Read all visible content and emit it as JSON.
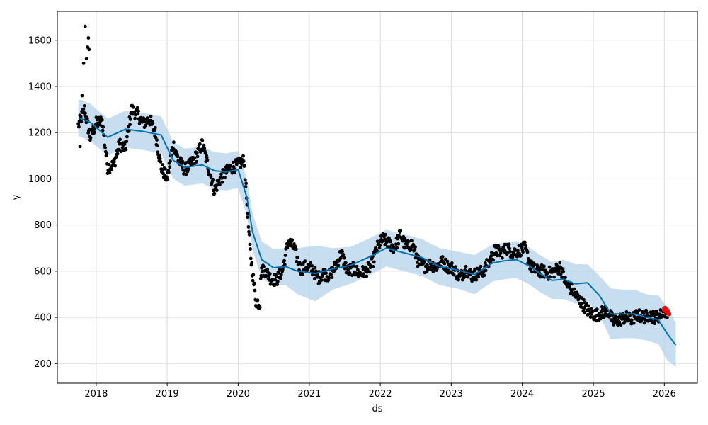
{
  "chart_data": {
    "type": "scatter",
    "title": "",
    "xlabel": "ds",
    "ylabel": "y",
    "xlim": [
      "2017-06-15",
      "2026-06-20"
    ],
    "ylim": [
      115,
      1725
    ],
    "x_ticks": [
      "2018-01-01",
      "2019-01-01",
      "2020-01-01",
      "2021-01-01",
      "2022-01-01",
      "2023-01-01",
      "2024-01-01",
      "2025-01-01",
      "2026-01-01"
    ],
    "x_tick_labels": [
      "2018",
      "2019",
      "2020",
      "2021",
      "2022",
      "2023",
      "2024",
      "2025",
      "2026"
    ],
    "y_ticks": [
      200,
      400,
      600,
      800,
      1000,
      1200,
      1400,
      1600
    ],
    "grid": true,
    "colors": {
      "observed": "#000000",
      "recent": "#ff0000",
      "forecast": "#0072b2",
      "interval": "#b3d3ea"
    },
    "forecast": {
      "x": [
        "2017-10-01",
        "2017-12-01",
        "2018-03-01",
        "2018-06-01",
        "2018-09-01",
        "2018-12-01",
        "2019-02-01",
        "2019-04-01",
        "2019-07-01",
        "2019-09-01",
        "2019-11-01",
        "2020-01-01",
        "2020-02-15",
        "2020-03-15",
        "2020-05-01",
        "2020-07-01",
        "2020-09-01",
        "2020-11-01",
        "2021-02-01",
        "2021-05-01",
        "2021-08-01",
        "2021-11-01",
        "2022-02-01",
        "2022-05-01",
        "2022-08-01",
        "2022-11-01",
        "2023-02-01",
        "2023-05-01",
        "2023-08-01",
        "2023-10-01",
        "2023-12-01",
        "2024-02-01",
        "2024-04-01",
        "2024-06-01",
        "2024-08-01",
        "2024-10-01",
        "2024-12-01",
        "2025-02-01",
        "2025-04-01",
        "2025-06-01",
        "2025-08-01",
        "2025-10-01",
        "2025-12-01",
        "2026-01-15",
        "2026-03-01"
      ],
      "yhat": [
        1265,
        1245,
        1180,
        1215,
        1205,
        1190,
        1080,
        1050,
        1060,
        1035,
        1030,
        1040,
        920,
        770,
        650,
        615,
        620,
        600,
        590,
        610,
        625,
        660,
        700,
        680,
        660,
        620,
        605,
        585,
        635,
        645,
        650,
        625,
        590,
        560,
        565,
        545,
        550,
        495,
        415,
        415,
        415,
        400,
        390,
        330,
        280
      ],
      "lower": [
        1185,
        1165,
        1100,
        1135,
        1125,
        1110,
        1000,
        970,
        980,
        955,
        950,
        960,
        840,
        690,
        570,
        535,
        540,
        500,
        470,
        520,
        545,
        580,
        620,
        600,
        580,
        540,
        525,
        500,
        555,
        565,
        570,
        545,
        510,
        480,
        480,
        460,
        470,
        410,
        305,
        310,
        310,
        300,
        285,
        215,
        185
      ],
      "upper": [
        1345,
        1325,
        1260,
        1295,
        1285,
        1270,
        1160,
        1130,
        1140,
        1115,
        1110,
        1120,
        1000,
        850,
        730,
        695,
        700,
        700,
        710,
        700,
        705,
        740,
        780,
        760,
        740,
        700,
        685,
        670,
        715,
        725,
        730,
        705,
        670,
        640,
        650,
        630,
        630,
        580,
        525,
        520,
        520,
        500,
        495,
        445,
        375
      ]
    },
    "observed_segments": [
      {
        "x": [
          "2017-10-01",
          "2017-11-01",
          "2017-12-01",
          "2018-01-01",
          "2018-02-01",
          "2018-03-01",
          "2018-04-01",
          "2018-05-01",
          "2018-06-01",
          "2018-07-01",
          "2018-08-01",
          "2018-09-01",
          "2018-10-01",
          "2018-11-01",
          "2018-12-01",
          "2019-01-01",
          "2019-02-01",
          "2019-03-01",
          "2019-04-01",
          "2019-05-01",
          "2019-06-01",
          "2019-07-01",
          "2019-08-01",
          "2019-09-01",
          "2019-10-01",
          "2019-11-01",
          "2019-12-01",
          "2020-01-01",
          "2020-02-01",
          "2020-03-01",
          "2020-04-01",
          "2020-04-25"
        ],
        "y": [
          1230,
          1300,
          1180,
          1240,
          1250,
          1050,
          1060,
          1150,
          1130,
          1300,
          1280,
          1240,
          1260,
          1200,
          1050,
          1000,
          1150,
          1080,
          1040,
          1060,
          1100,
          1150,
          1050,
          950,
          1000,
          1030,
          1050,
          1060,
          1080,
          700,
          470,
          460
        ]
      },
      {
        "x": [
          "2020-04-26",
          "2020-05-15",
          "2020-06-15",
          "2020-07-15",
          "2020-08-15",
          "2020-09-15",
          "2020-10-15",
          "2020-11-15",
          "2020-12-15",
          "2021-01-15",
          "2021-02-15",
          "2021-03-15",
          "2021-04-15",
          "2021-05-15",
          "2021-06-15",
          "2021-07-15",
          "2021-08-15",
          "2021-09-15",
          "2021-10-15",
          "2021-11-15",
          "2021-12-15",
          "2022-01-15",
          "2022-02-15",
          "2022-03-15",
          "2022-04-15",
          "2022-05-15",
          "2022-06-15",
          "2022-07-15",
          "2022-08-15",
          "2022-09-15",
          "2022-10-15",
          "2022-11-15",
          "2022-12-15",
          "2023-01-15",
          "2023-02-15",
          "2023-03-15",
          "2023-04-15",
          "2023-05-15",
          "2023-06-15",
          "2023-07-15",
          "2023-08-15",
          "2023-09-15",
          "2023-10-15",
          "2023-11-15",
          "2023-12-15",
          "2024-01-15",
          "2024-02-15",
          "2024-03-15",
          "2024-04-15",
          "2024-05-15",
          "2024-06-15",
          "2024-07-15",
          "2024-08-15",
          "2024-09-15",
          "2024-10-15",
          "2024-11-15",
          "2024-12-15",
          "2025-01-15",
          "2025-02-15",
          "2025-03-15",
          "2025-04-15",
          "2025-05-15",
          "2025-06-15",
          "2025-07-15",
          "2025-08-15",
          "2025-09-15",
          "2025-10-15",
          "2025-11-15",
          "2025-12-15"
        ],
        "y": [
          590,
          610,
          570,
          560,
          600,
          730,
          700,
          610,
          620,
          610,
          570,
          590,
          580,
          620,
          680,
          600,
          610,
          590,
          600,
          620,
          700,
          740,
          720,
          700,
          760,
          700,
          720,
          640,
          620,
          630,
          620,
          640,
          620,
          610,
          570,
          610,
          580,
          590,
          600,
          640,
          690,
          680,
          700,
          680,
          690,
          700,
          620,
          600,
          600,
          590,
          600,
          620,
          540,
          520,
          480,
          450,
          420,
          410,
          420,
          430,
          380,
          390,
          400,
          390,
          410,
          400,
          410,
          400,
          410
        ]
      },
      {
        "x": [
          "2025-12-20",
          "2025-12-30",
          "2026-01-10",
          "2026-01-18"
        ],
        "y": [
          420,
          430,
          415,
          425
        ]
      }
    ],
    "observed_spikes": {
      "x": [
        "2017-10-10",
        "2017-10-20",
        "2017-10-28",
        "2017-11-05",
        "2017-11-12",
        "2017-11-18",
        "2017-11-22",
        "2017-11-25"
      ],
      "y": [
        1140,
        1360,
        1500,
        1660,
        1520,
        1570,
        1610,
        1560
      ]
    },
    "recent_actuals": {
      "x": [
        "2026-01-01",
        "2026-01-05",
        "2026-01-09",
        "2026-01-13",
        "2026-01-17",
        "2026-01-21",
        "2026-01-25"
      ],
      "y": [
        430,
        440,
        435,
        425,
        430,
        420,
        415
      ]
    }
  }
}
